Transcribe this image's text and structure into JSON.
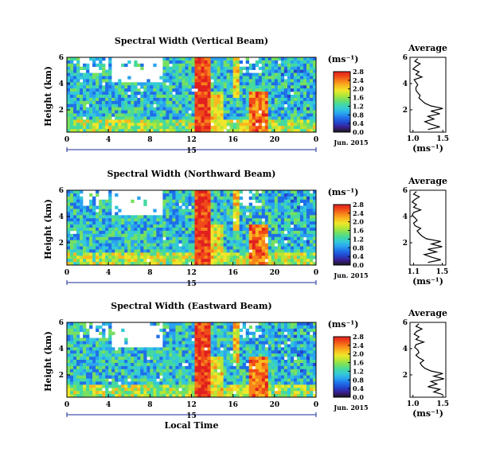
{
  "colormap": [
    "#1a1a1a",
    "#3b1d8c",
    "#2244cc",
    "#1f6ee8",
    "#2aa3f0",
    "#33c9d8",
    "#44d9a0",
    "#77e060",
    "#b5e635",
    "#f0e62a",
    "#f9b81f",
    "#f7821a",
    "#f04a18",
    "#e11f1f"
  ],
  "chart_data": [
    {
      "type": "heatmap",
      "title": "Spectral Width (Vertical Beam)",
      "ylabel": "Height (km)",
      "xlabel": "",
      "x_ticks": [
        "0",
        "4",
        "8",
        "12",
        "16",
        "20",
        "0"
      ],
      "y_ticks": [
        "2",
        "4",
        "6"
      ],
      "xlim": [
        0,
        24
      ],
      "ylim": [
        0.3,
        6
      ],
      "date_label": "Jun. 2015",
      "date_tick": "15",
      "colorbar": {
        "unit": "(ms⁻¹)",
        "min": 0.0,
        "max": 2.8,
        "ticks": [
          "0.0",
          "0.4",
          "0.8",
          "1.2",
          "1.6",
          "2.0",
          "2.4",
          "2.8"
        ]
      },
      "average": {
        "title": "Average",
        "xlabel": "(ms⁻¹)",
        "x_ticks": [
          "1.0",
          "1.5"
        ],
        "xlim": [
          0.95,
          1.55
        ],
        "y_ticks": [
          "2",
          "4",
          "6"
        ],
        "ylim": [
          0.3,
          6
        ],
        "height_km": [
          0.5,
          0.7,
          0.9,
          1.1,
          1.3,
          1.5,
          1.7,
          1.9,
          2.1,
          2.3,
          2.5,
          2.7,
          2.9,
          3.1,
          3.3,
          3.5,
          3.7,
          3.9,
          4.1,
          4.3,
          4.5,
          4.7,
          4.9,
          5.1,
          5.3,
          5.5,
          5.7,
          5.9
        ],
        "values": [
          1.25,
          1.45,
          1.3,
          1.2,
          1.35,
          1.25,
          1.45,
          1.3,
          1.5,
          1.3,
          1.2,
          1.15,
          1.1,
          1.12,
          1.08,
          1.05,
          1.05,
          1.08,
          1.05,
          1.02,
          1.15,
          1.05,
          1.1,
          1.0,
          1.05,
          1.12,
          1.03,
          1.08
        ]
      }
    },
    {
      "type": "heatmap",
      "title": "Spectral Width (Northward Beam)",
      "ylabel": "Height (km)",
      "xlabel": "",
      "x_ticks": [
        "0",
        "4",
        "8",
        "12",
        "16",
        "20",
        "0"
      ],
      "y_ticks": [
        "2",
        "4",
        "6"
      ],
      "xlim": [
        0,
        24
      ],
      "ylim": [
        0.3,
        6
      ],
      "date_label": "Jun. 2015",
      "date_tick": "15",
      "colorbar": {
        "unit": "(ms⁻¹)",
        "min": 0.0,
        "max": 2.8,
        "ticks": [
          "0.0",
          "0.4",
          "0.8",
          "1.2",
          "1.6",
          "2.0",
          "2.4",
          "2.8"
        ]
      },
      "average": {
        "title": "Average",
        "xlabel": "(ms⁻¹)",
        "x_ticks": [
          "1.1",
          "1.5"
        ],
        "xlim": [
          1.05,
          1.55
        ],
        "y_ticks": [
          "2",
          "4",
          "6"
        ],
        "ylim": [
          0.3,
          6
        ],
        "height_km": [
          0.5,
          0.7,
          0.9,
          1.1,
          1.3,
          1.5,
          1.7,
          1.9,
          2.1,
          2.3,
          2.5,
          2.7,
          2.9,
          3.1,
          3.3,
          3.5,
          3.7,
          3.9,
          4.1,
          4.3,
          4.5,
          4.7,
          4.9,
          5.1,
          5.3,
          5.5,
          5.7,
          5.9
        ],
        "values": [
          1.3,
          1.48,
          1.35,
          1.25,
          1.42,
          1.3,
          1.5,
          1.35,
          1.48,
          1.28,
          1.22,
          1.18,
          1.15,
          1.2,
          1.12,
          1.1,
          1.15,
          1.12,
          1.08,
          1.1,
          1.2,
          1.1,
          1.14,
          1.08,
          1.12,
          1.18,
          1.1,
          1.14
        ]
      }
    },
    {
      "type": "heatmap",
      "title": "Spectral Width (Eastward Beam)",
      "ylabel": "Height (km)",
      "xlabel": "Local Time",
      "x_ticks": [
        "0",
        "4",
        "8",
        "12",
        "16",
        "20",
        "0"
      ],
      "y_ticks": [
        "2",
        "4",
        "6"
      ],
      "xlim": [
        0,
        24
      ],
      "ylim": [
        0.3,
        6
      ],
      "date_label": "Jun. 2015",
      "date_tick": "15",
      "colorbar": {
        "unit": "(ms⁻¹)",
        "min": 0.0,
        "max": 2.8,
        "ticks": [
          "0.0",
          "0.4",
          "0.8",
          "1.2",
          "1.6",
          "2.0",
          "2.4",
          "2.8"
        ]
      },
      "average": {
        "title": "Average",
        "xlabel": "(ms⁻¹)",
        "x_ticks": [
          "1.0",
          "1.5"
        ],
        "xlim": [
          0.95,
          1.55
        ],
        "y_ticks": [
          "2",
          "4",
          "6"
        ],
        "ylim": [
          0.3,
          6
        ],
        "height_km": [
          0.5,
          0.7,
          0.9,
          1.1,
          1.3,
          1.5,
          1.7,
          1.9,
          2.1,
          2.3,
          2.5,
          2.7,
          2.9,
          3.1,
          3.3,
          3.5,
          3.7,
          3.9,
          4.1,
          4.3,
          4.5,
          4.7,
          4.9,
          5.1,
          5.3,
          5.5,
          5.7,
          5.9
        ],
        "values": [
          1.5,
          1.35,
          1.45,
          1.25,
          1.4,
          1.3,
          1.52,
          1.35,
          1.5,
          1.3,
          1.2,
          1.15,
          1.12,
          1.18,
          1.1,
          1.05,
          1.1,
          1.08,
          1.03,
          1.05,
          1.18,
          1.05,
          1.1,
          1.02,
          1.06,
          1.15,
          1.05,
          1.1
        ]
      }
    }
  ]
}
